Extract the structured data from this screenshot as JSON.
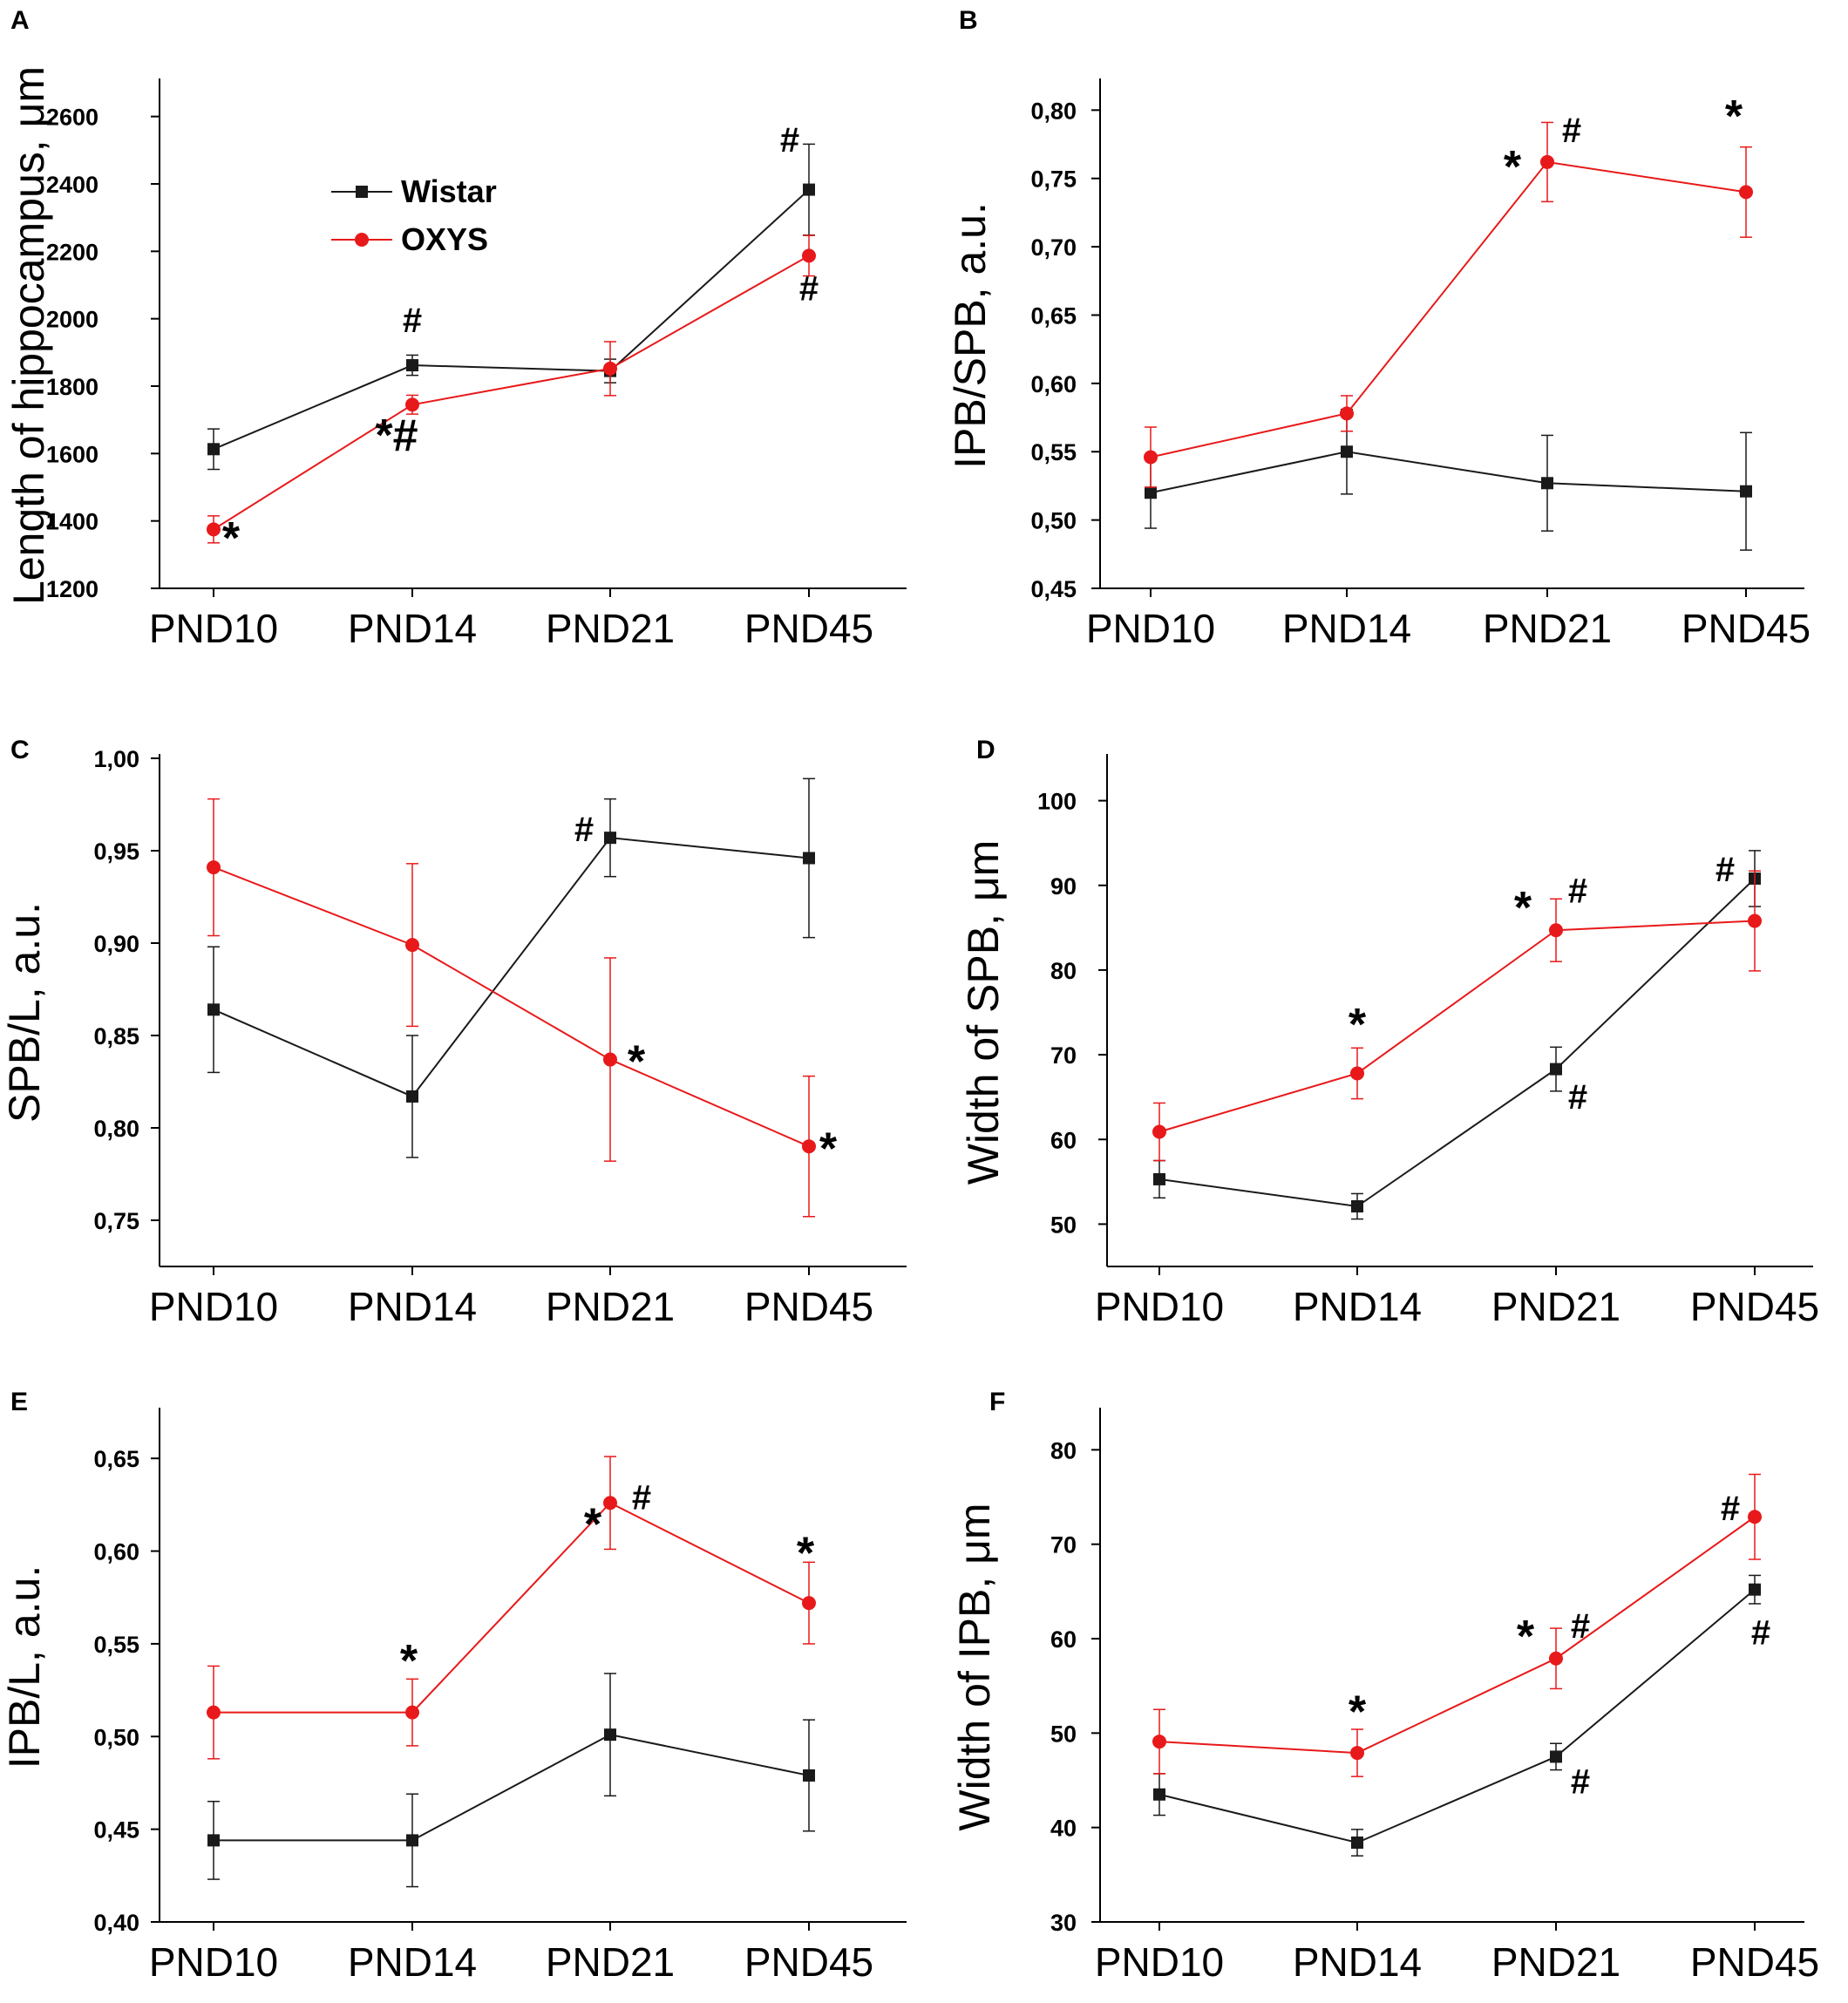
{
  "colors": {
    "wistar": "#1a1a1a",
    "oxys": "#e8191a"
  },
  "legend": {
    "wistar": "Wistar",
    "oxys": "OXYS"
  },
  "chart_data": [
    {
      "type": "line",
      "panel": "A",
      "ylabel": "Length of hippocampus, μm",
      "categories": [
        "PND10",
        "PND14",
        "PND21",
        "PND45"
      ],
      "ylim": [
        1200,
        2700
      ],
      "yticks": [
        1200,
        1400,
        1600,
        1800,
        2000,
        2200,
        2400,
        2600
      ],
      "ytick_labels": [
        "1200",
        "1400",
        "1600",
        "1800",
        "2000",
        "2200",
        "2400",
        "2600"
      ],
      "series": [
        {
          "name": "Wistar",
          "values": [
            1613,
            1862,
            1845,
            2383
          ],
          "errors": [
            60,
            30,
            35,
            135
          ]
        },
        {
          "name": "OXYS",
          "values": [
            1375,
            1745,
            1852,
            2187
          ],
          "errors": [
            40,
            28,
            80,
            60
          ]
        }
      ],
      "annotations": [
        {
          "text": "*",
          "at": [
            0,
            1350
          ]
        },
        {
          "text": "#",
          "at": [
            1,
            1935
          ]
        },
        {
          "text": "*#",
          "at": [
            1,
            1660
          ]
        },
        {
          "text": "#",
          "at": [
            3,
            2470
          ]
        },
        {
          "text": "#",
          "at": [
            3,
            2055
          ]
        }
      ]
    },
    {
      "type": "line",
      "panel": "B",
      "ylabel": "IPB/SPB, a.u.",
      "categories": [
        "PND10",
        "PND14",
        "PND21",
        "PND45"
      ],
      "ylim": [
        0.45,
        0.82
      ],
      "yticks": [
        0.45,
        0.5,
        0.55,
        0.6,
        0.65,
        0.7,
        0.75,
        0.8
      ],
      "ytick_labels": [
        "0,45",
        "0,50",
        "0,55",
        "0,60",
        "0,65",
        "0,70",
        "0,75",
        "0,80"
      ],
      "series": [
        {
          "name": "Wistar",
          "values": [
            0.52,
            0.55,
            0.527,
            0.521
          ],
          "errors": [
            0.026,
            0.031,
            0.035,
            0.043
          ]
        },
        {
          "name": "OXYS",
          "values": [
            0.546,
            0.578,
            0.762,
            0.74
          ],
          "errors": [
            0.022,
            0.013,
            0.029,
            0.033
          ]
        }
      ],
      "annotations": [
        {
          "text": "*",
          "at": [
            2,
            0.765
          ]
        },
        {
          "text": "#",
          "at": [
            2,
            0.783
          ]
        },
        {
          "text": "*",
          "at": [
            3,
            0.792
          ]
        }
      ]
    },
    {
      "type": "line",
      "panel": "C",
      "ylabel": "SPB/L, a.u.",
      "categories": [
        "PND10",
        "PND14",
        "PND21",
        "PND45"
      ],
      "ylim": [
        0.725,
        1.0
      ],
      "yticks": [
        0.75,
        0.8,
        0.85,
        0.9,
        0.95,
        1.0
      ],
      "ytick_labels": [
        "0,75",
        "0,80",
        "0,85",
        "0,90",
        "0,95",
        "1,00"
      ],
      "series": [
        {
          "name": "Wistar",
          "values": [
            0.864,
            0.817,
            0.957,
            0.946
          ],
          "errors": [
            0.034,
            0.033,
            0.021,
            0.043
          ]
        },
        {
          "name": "OXYS",
          "values": [
            0.941,
            0.899,
            0.837,
            0.79
          ],
          "errors": [
            0.037,
            0.044,
            0.055,
            0.038
          ]
        }
      ],
      "annotations": [
        {
          "text": "#",
          "at": [
            2,
            0.96
          ]
        },
        {
          "text": "*",
          "at": [
            2,
            0.836
          ]
        },
        {
          "text": "*",
          "at": [
            3,
            0.789
          ]
        }
      ]
    },
    {
      "type": "line",
      "panel": "D",
      "ylabel": "Width of SPB, μm",
      "categories": [
        "PND10",
        "PND14",
        "PND21",
        "PND45"
      ],
      "ylim": [
        45,
        105
      ],
      "yticks": [
        50,
        60,
        70,
        80,
        90,
        100
      ],
      "ytick_labels": [
        "50",
        "60",
        "70",
        "80",
        "90",
        "100"
      ],
      "series": [
        {
          "name": "Wistar",
          "values": [
            55.3,
            52.1,
            68.3,
            90.8
          ],
          "errors": [
            2.2,
            1.5,
            2.6,
            3.3
          ]
        },
        {
          "name": "OXYS",
          "values": [
            60.9,
            67.8,
            84.7,
            85.8
          ],
          "errors": [
            3.4,
            3.0,
            3.7,
            5.9
          ]
        }
      ],
      "annotations": [
        {
          "text": "*",
          "at": [
            1,
            73
          ]
        },
        {
          "text": "*",
          "at": [
            2,
            86.8
          ]
        },
        {
          "text": "#",
          "at": [
            2,
            89
          ]
        },
        {
          "text": "#",
          "at": [
            2,
            65.5
          ]
        },
        {
          "text": "#",
          "at": [
            3,
            91.5
          ]
        }
      ]
    },
    {
      "type": "line",
      "panel": "E",
      "ylabel": "IPB/L, a.u.",
      "categories": [
        "PND10",
        "PND14",
        "PND21",
        "PND45"
      ],
      "ylim": [
        0.4,
        0.675
      ],
      "yticks": [
        0.4,
        0.45,
        0.5,
        0.55,
        0.6,
        0.65
      ],
      "ytick_labels": [
        "0,40",
        "0,45",
        "0,50",
        "0,55",
        "0,60",
        "0,65"
      ],
      "series": [
        {
          "name": "Wistar",
          "values": [
            0.444,
            0.444,
            0.501,
            0.479
          ],
          "errors": [
            0.021,
            0.025,
            0.033,
            0.03
          ]
        },
        {
          "name": "OXYS",
          "values": [
            0.513,
            0.513,
            0.626,
            0.572
          ],
          "errors": [
            0.025,
            0.018,
            0.025,
            0.022
          ]
        }
      ],
      "annotations": [
        {
          "text": "*",
          "at": [
            1,
            0.542
          ]
        },
        {
          "text": "*",
          "at": [
            2,
            0.624
          ]
        },
        {
          "text": "#",
          "at": [
            2,
            0.63
          ]
        },
        {
          "text": "*",
          "at": [
            3,
            0.6
          ]
        }
      ]
    },
    {
      "type": "line",
      "panel": "F",
      "ylabel": "Width of IPB, μm",
      "categories": [
        "PND10",
        "PND14",
        "PND21",
        "PND45"
      ],
      "ylim": [
        30,
        84
      ],
      "yticks": [
        30,
        40,
        50,
        60,
        70,
        80
      ],
      "ytick_labels": [
        "30",
        "40",
        "50",
        "60",
        "70",
        "80"
      ],
      "series": [
        {
          "name": "Wistar",
          "values": [
            43.5,
            38.4,
            47.5,
            65.2
          ],
          "errors": [
            2.2,
            1.4,
            1.4,
            1.5
          ]
        },
        {
          "name": "OXYS",
          "values": [
            49.1,
            47.9,
            57.9,
            72.9
          ],
          "errors": [
            3.4,
            2.5,
            3.2,
            4.5
          ]
        }
      ],
      "annotations": [
        {
          "text": "*",
          "at": [
            1,
            52.5
          ]
        },
        {
          "text": "*",
          "at": [
            2,
            60.3
          ]
        },
        {
          "text": "#",
          "at": [
            2,
            61
          ]
        },
        {
          "text": "#",
          "at": [
            2,
            45
          ]
        },
        {
          "text": "#",
          "at": [
            3,
            73.5
          ]
        },
        {
          "text": "#",
          "at": [
            3,
            60.5
          ]
        }
      ]
    }
  ]
}
